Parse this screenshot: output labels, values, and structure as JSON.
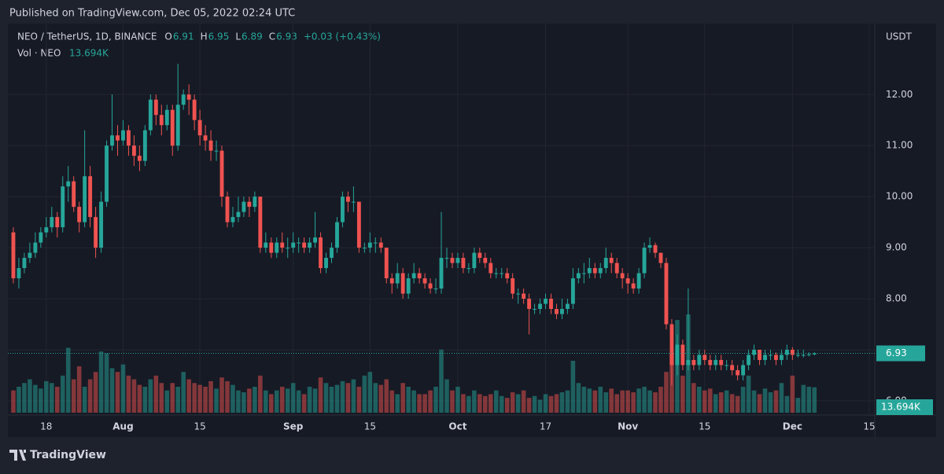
{
  "published": "Published on TradingView.com, Dec 05, 2022 02:24 UTC",
  "brand": "TradingView",
  "chart_data": {
    "type": "candlestick",
    "title": "NEO / TetherUS, 1D, BINANCE",
    "ohlc_labels": [
      "O",
      "H",
      "L",
      "C"
    ],
    "change": "+0.03 (+0.43%)",
    "volume_title": "Vol · NEO",
    "volume_label": "13.694K",
    "currency": "USDT",
    "up_color": "#26a69a",
    "down_color": "#ef5350",
    "grid": true,
    "xlim": [
      -1,
      157
    ],
    "ylim": [
      5.29,
      13.39
    ],
    "yticks": [
      {
        "value": 6,
        "label": "6.00"
      },
      {
        "value": 7,
        "label": "7.00"
      },
      {
        "value": 8,
        "label": "8.00"
      },
      {
        "value": 9,
        "label": "9.00"
      },
      {
        "value": 10,
        "label": "10.00"
      },
      {
        "value": 11,
        "label": "11.00"
      },
      {
        "value": 12,
        "label": "12.00"
      }
    ],
    "xticks": [
      {
        "value": 6,
        "label": "18"
      },
      {
        "value": 20,
        "label": "Aug"
      },
      {
        "value": 34,
        "label": "15"
      },
      {
        "value": 51,
        "label": "Sep"
      },
      {
        "value": 65,
        "label": "15"
      },
      {
        "value": 81,
        "label": "Oct"
      },
      {
        "value": 97,
        "label": "17"
      },
      {
        "value": 112,
        "label": "Nov"
      },
      {
        "value": 126,
        "label": "15"
      },
      {
        "value": 142,
        "label": "Dec"
      },
      {
        "value": 156,
        "label": "15"
      }
    ],
    "open": [
      9.3,
      8.4,
      8.6,
      8.8,
      8.9,
      9.1,
      9.3,
      9.4,
      9.6,
      9.4,
      10.2,
      10.3,
      9.8,
      9.5,
      10.4,
      9.6,
      9.0,
      9.9,
      11.0,
      11.2,
      11.1,
      11.3,
      11.0,
      10.8,
      10.7,
      11.3,
      11.9,
      11.6,
      11.4,
      11.7,
      11.0,
      11.8,
      12.0,
      11.9,
      11.5,
      11.2,
      11.1,
      10.9,
      10.9,
      10.0,
      9.5,
      9.6,
      9.7,
      9.9,
      9.8,
      10.0,
      9.0,
      9.1,
      8.9,
      9.1,
      9.0,
      9.0,
      9.1,
      9.1,
      9.0,
      9.1,
      9.2,
      8.6,
      8.8,
      9.0,
      9.5,
      10.0,
      9.9,
      9.9,
      9.0,
      9.0,
      9.1,
      9.1,
      9.0,
      8.4,
      8.3,
      8.5,
      8.1,
      8.4,
      8.5,
      8.4,
      8.3,
      8.2,
      8.2,
      8.8,
      8.8,
      8.7,
      8.8,
      8.6,
      8.6,
      8.9,
      8.8,
      8.7,
      8.5,
      8.5,
      8.5,
      8.4,
      8.1,
      8.1,
      8.0,
      7.8,
      7.8,
      7.9,
      8.0,
      7.8,
      7.7,
      7.8,
      7.9,
      8.4,
      8.5,
      8.5,
      8.6,
      8.5,
      8.6,
      8.8,
      8.7,
      8.5,
      8.4,
      8.3,
      8.2,
      8.5,
      9.0,
      9.05,
      8.9,
      8.7,
      7.5,
      6.7,
      7.1,
      6.7,
      6.8,
      6.7,
      6.9,
      6.8,
      6.7,
      6.8,
      6.7,
      6.7,
      6.6,
      6.5,
      6.7,
      6.9,
      7.0,
      6.8,
      6.9,
      6.9,
      6.8,
      6.9,
      7.0,
      6.9,
      6.9,
      6.9,
      6.91
    ],
    "high": [
      9.4,
      8.8,
      8.9,
      9.1,
      9.3,
      9.4,
      9.6,
      9.8,
      9.7,
      10.4,
      10.6,
      10.4,
      9.9,
      11.3,
      10.6,
      9.8,
      10.1,
      11.1,
      12.0,
      11.4,
      11.5,
      11.4,
      11.2,
      11.0,
      11.4,
      12.0,
      12.0,
      11.8,
      11.8,
      11.8,
      12.6,
      12.1,
      12.2,
      12.0,
      11.7,
      11.4,
      11.3,
      11.1,
      11.0,
      10.1,
      9.8,
      10.0,
      10.0,
      10.0,
      10.1,
      10.0,
      9.3,
      9.2,
      9.2,
      9.3,
      9.2,
      9.3,
      9.2,
      9.2,
      9.2,
      9.7,
      9.3,
      8.9,
      9.1,
      9.6,
      10.1,
      10.1,
      10.2,
      9.9,
      9.1,
      9.3,
      9.2,
      9.2,
      9.0,
      8.5,
      8.7,
      8.6,
      8.5,
      8.7,
      8.6,
      8.5,
      8.4,
      8.4,
      9.7,
      9.0,
      8.9,
      8.9,
      8.9,
      8.7,
      9.0,
      9.0,
      8.9,
      8.8,
      8.6,
      8.6,
      8.6,
      8.5,
      8.2,
      8.2,
      8.1,
      7.9,
      8.0,
      8.1,
      8.1,
      7.9,
      8.0,
      8.0,
      8.6,
      8.6,
      8.7,
      8.8,
      8.7,
      8.7,
      9.0,
      8.9,
      8.8,
      8.6,
      8.5,
      8.4,
      8.6,
      9.1,
      9.2,
      9.1,
      8.9,
      8.8,
      7.6,
      7.3,
      7.2,
      8.2,
      6.9,
      7.0,
      7.0,
      6.9,
      6.9,
      6.9,
      6.8,
      6.8,
      6.7,
      6.8,
      7.0,
      7.1,
      7.0,
      7.0,
      7.0,
      6.95,
      7.0,
      7.1,
      7.05,
      7.0,
      7.0,
      6.95,
      6.95
    ],
    "low": [
      8.3,
      8.2,
      8.5,
      8.7,
      8.8,
      9.0,
      9.2,
      9.3,
      9.2,
      9.3,
      9.9,
      9.7,
      9.3,
      9.4,
      9.4,
      8.8,
      8.9,
      9.8,
      10.9,
      10.8,
      11.0,
      10.8,
      10.6,
      10.5,
      10.6,
      11.2,
      11.4,
      11.2,
      11.3,
      10.8,
      10.9,
      11.7,
      11.6,
      11.3,
      11.0,
      10.9,
      10.7,
      10.7,
      9.8,
      9.4,
      9.4,
      9.5,
      9.6,
      9.6,
      9.7,
      8.9,
      8.9,
      8.8,
      8.8,
      8.9,
      8.8,
      8.9,
      8.9,
      8.9,
      8.9,
      9.0,
      8.5,
      8.5,
      8.7,
      8.9,
      9.4,
      9.7,
      9.7,
      8.9,
      8.9,
      8.9,
      8.9,
      8.9,
      8.3,
      8.1,
      8.2,
      8.0,
      8.0,
      8.3,
      8.3,
      8.2,
      8.1,
      8.1,
      8.1,
      8.6,
      8.6,
      8.6,
      8.5,
      8.5,
      8.5,
      8.7,
      8.6,
      8.4,
      8.4,
      8.4,
      8.3,
      8.0,
      7.9,
      7.9,
      7.3,
      7.7,
      7.7,
      7.8,
      7.7,
      7.6,
      7.6,
      7.7,
      7.8,
      8.3,
      8.3,
      8.4,
      8.4,
      8.4,
      8.5,
      8.5,
      8.4,
      8.2,
      8.1,
      8.1,
      8.1,
      8.4,
      8.9,
      8.8,
      8.6,
      7.4,
      6.3,
      6.5,
      6.6,
      6.6,
      6.6,
      6.6,
      6.7,
      6.6,
      6.6,
      6.6,
      6.6,
      6.5,
      6.4,
      6.4,
      6.6,
      6.8,
      6.7,
      6.7,
      6.8,
      6.7,
      6.7,
      6.8,
      6.8,
      6.85,
      6.85,
      6.87,
      6.89
    ],
    "close": [
      8.4,
      8.6,
      8.8,
      8.9,
      9.1,
      9.3,
      9.4,
      9.6,
      9.4,
      10.2,
      10.3,
      9.8,
      9.5,
      10.4,
      9.6,
      9.0,
      9.9,
      11.0,
      11.2,
      11.1,
      11.3,
      11.0,
      10.8,
      10.7,
      11.3,
      11.9,
      11.6,
      11.4,
      11.7,
      11.0,
      11.8,
      12.0,
      11.9,
      11.5,
      11.2,
      11.1,
      10.9,
      10.9,
      10.0,
      9.5,
      9.6,
      9.7,
      9.9,
      9.8,
      10.0,
      9.0,
      9.1,
      8.9,
      9.1,
      9.0,
      9.0,
      9.1,
      9.1,
      9.0,
      9.1,
      9.2,
      8.6,
      8.8,
      9.0,
      9.5,
      10.0,
      9.9,
      9.9,
      9.0,
      9.0,
      9.1,
      9.1,
      9.0,
      8.4,
      8.3,
      8.5,
      8.1,
      8.4,
      8.5,
      8.4,
      8.3,
      8.2,
      8.2,
      8.8,
      8.8,
      8.7,
      8.8,
      8.6,
      8.6,
      8.9,
      8.8,
      8.7,
      8.5,
      8.5,
      8.5,
      8.4,
      8.1,
      8.1,
      8.0,
      7.8,
      7.8,
      7.9,
      8.0,
      7.8,
      7.7,
      7.8,
      7.9,
      8.4,
      8.5,
      8.5,
      8.6,
      8.5,
      8.6,
      8.8,
      8.7,
      8.5,
      8.4,
      8.3,
      8.2,
      8.5,
      9.0,
      9.05,
      8.9,
      8.7,
      7.5,
      6.7,
      7.1,
      6.7,
      6.8,
      6.7,
      6.9,
      6.8,
      6.7,
      6.8,
      6.7,
      6.7,
      6.6,
      6.5,
      6.7,
      6.9,
      7.0,
      6.8,
      6.9,
      6.9,
      6.8,
      6.9,
      7.0,
      6.9,
      6.9,
      6.9,
      6.91,
      6.93
    ],
    "volume": [
      12,
      14,
      16,
      18,
      15,
      13,
      17,
      16,
      14,
      20,
      35,
      18,
      25,
      14,
      18,
      22,
      33,
      32,
      24,
      22,
      26,
      20,
      18,
      15,
      14,
      18,
      20,
      16,
      12,
      16,
      14,
      22,
      18,
      16,
      15,
      14,
      17,
      13,
      19,
      17,
      15,
      12,
      11,
      13,
      14,
      20,
      12,
      10,
      12,
      14,
      13,
      16,
      12,
      10,
      14,
      13,
      19,
      16,
      14,
      15,
      17,
      16,
      18,
      14,
      20,
      22,
      16,
      15,
      18,
      12,
      10,
      16,
      14,
      12,
      10,
      10,
      12,
      14,
      34,
      18,
      12,
      14,
      10,
      9,
      12,
      10,
      9,
      10,
      12,
      9,
      8,
      11,
      10,
      12,
      8,
      9,
      7,
      10,
      9,
      10,
      11,
      12,
      28,
      16,
      14,
      13,
      12,
      14,
      11,
      13,
      10,
      12,
      12,
      11,
      13,
      14,
      12,
      11,
      14,
      22,
      32,
      50,
      20,
      53,
      16,
      14,
      12,
      13,
      10,
      11,
      12,
      10,
      9,
      14,
      20,
      12,
      10,
      13,
      11,
      12,
      16,
      9,
      20,
      8,
      15,
      14,
      13.694
    ]
  }
}
